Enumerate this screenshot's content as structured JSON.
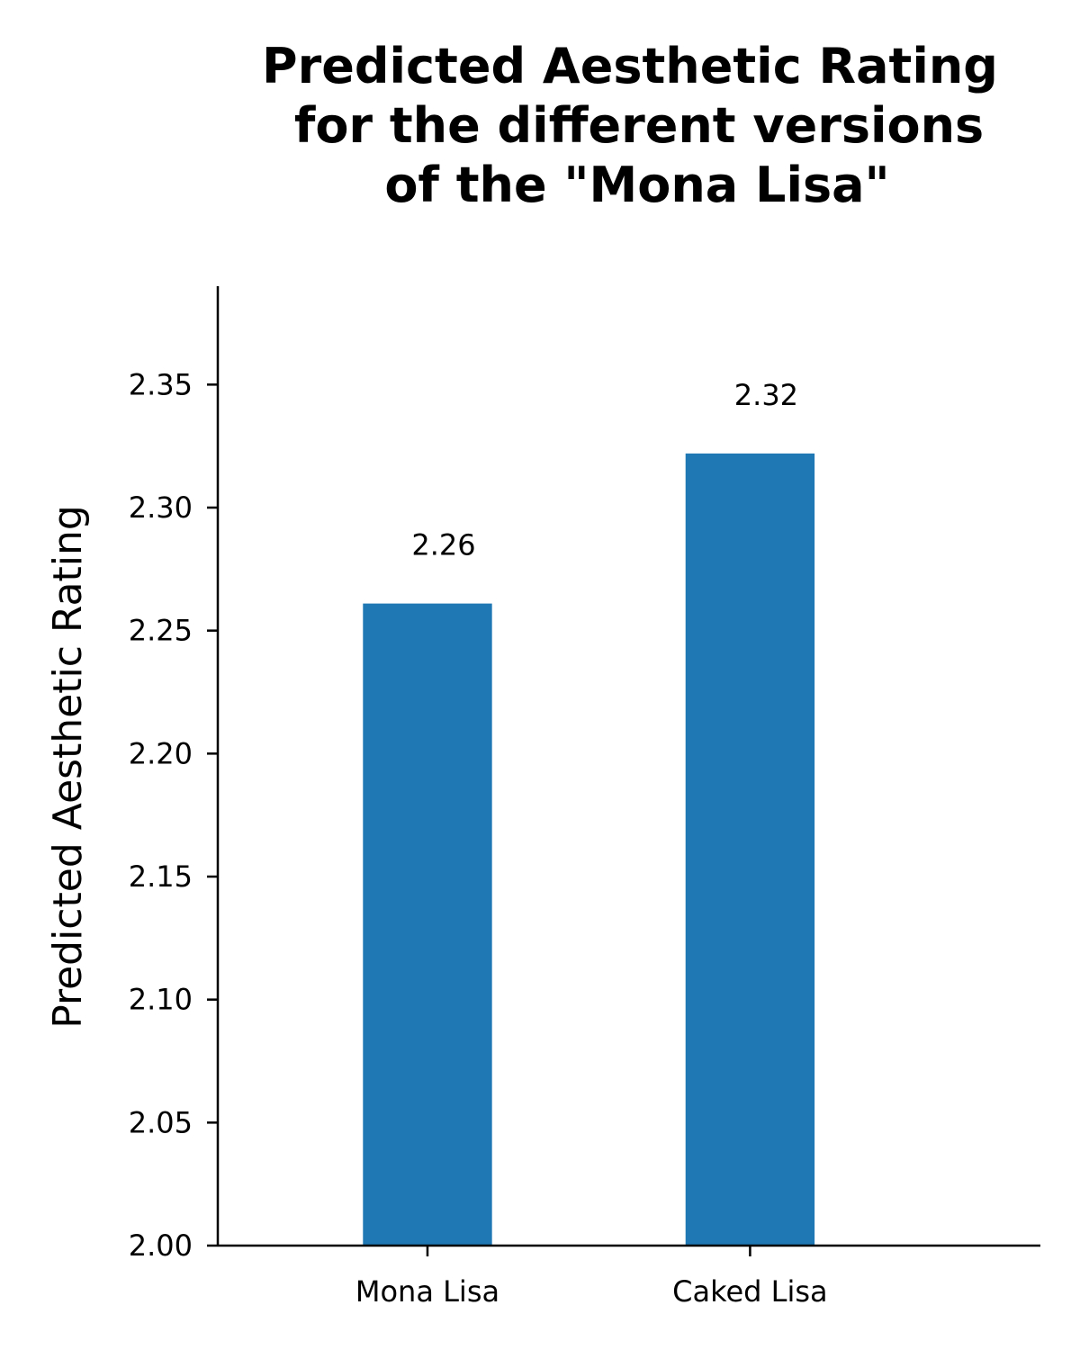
{
  "chart_data": {
    "type": "bar",
    "title_lines": [
      "Predicted Aesthetic Rating",
      "for the different versions",
      "of the \"Mona Lisa\""
    ],
    "xlabel": "",
    "ylabel": "Predicted Aesthetic Rating",
    "categories": [
      "Mona Lisa",
      "Caked Lisa"
    ],
    "values": [
      2.261,
      2.322
    ],
    "value_labels": [
      "2.26",
      "2.32"
    ],
    "ylim": [
      2.0,
      2.39
    ],
    "yticks": [
      2.0,
      2.05,
      2.1,
      2.15,
      2.2,
      2.25,
      2.3,
      2.35
    ],
    "ytick_labels": [
      "2.00",
      "2.05",
      "2.10",
      "2.15",
      "2.20",
      "2.25",
      "2.30",
      "2.35"
    ],
    "bar_color": "#1f77b4",
    "grid": false,
    "legend": "none"
  }
}
